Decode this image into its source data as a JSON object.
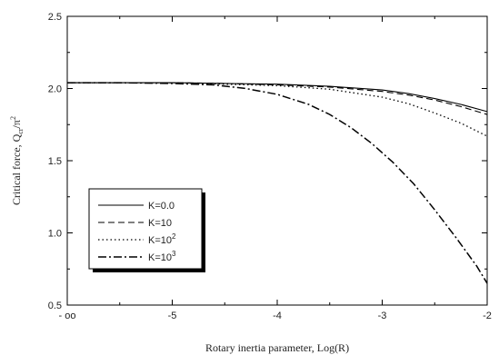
{
  "chart_data": {
    "type": "line",
    "title": "",
    "xlabel": "Rotary inertia parameter, Log(R)",
    "ylabel": "Critical force, Q",
    "ylabel_sub": "cr",
    "ylabel_tail": "/π",
    "ylabel_sup": "2",
    "x_tick_labels": [
      "- oo",
      "-5",
      "-4",
      "-3",
      "-2"
    ],
    "x_tick_values": [
      -6,
      -5,
      -4,
      -3,
      -2
    ],
    "xlim": [
      -6,
      -2
    ],
    "ylim": [
      0.5,
      2.5
    ],
    "y_ticks": [
      0.5,
      1.0,
      1.5,
      2.0,
      2.5
    ],
    "y_tick_labels": [
      "0.5",
      "1.0",
      "1.5",
      "2.0",
      "2.5"
    ],
    "grid": false,
    "legend_position": "bottom-left",
    "series": [
      {
        "name": "K=0.0",
        "name_base": "K=0.0",
        "name_sup": "",
        "dash": "solid",
        "x": [
          -6,
          -5.5,
          -5,
          -4.5,
          -4,
          -3.5,
          -3,
          -2.75,
          -2.5,
          -2.25,
          -2
        ],
        "y": [
          2.04,
          2.04,
          2.04,
          2.035,
          2.03,
          2.015,
          1.99,
          1.965,
          1.93,
          1.89,
          1.84
        ]
      },
      {
        "name": "K=10",
        "name_base": "K=10",
        "name_sup": "",
        "dash": "dash",
        "x": [
          -6,
          -5.5,
          -5,
          -4.5,
          -4,
          -3.5,
          -3,
          -2.75,
          -2.5,
          -2.25,
          -2
        ],
        "y": [
          2.04,
          2.04,
          2.04,
          2.035,
          2.025,
          2.01,
          1.98,
          1.955,
          1.92,
          1.875,
          1.82
        ]
      },
      {
        "name": "K=10^2",
        "name_base": "K=10",
        "name_sup": "2",
        "dash": "dot",
        "x": [
          -6,
          -5.5,
          -5,
          -4.5,
          -4,
          -3.5,
          -3,
          -2.75,
          -2.5,
          -2.25,
          -2
        ],
        "y": [
          2.04,
          2.04,
          2.04,
          2.03,
          2.02,
          1.995,
          1.94,
          1.895,
          1.83,
          1.76,
          1.67
        ]
      },
      {
        "name": "K=10^3",
        "name_base": "K=10",
        "name_sup": "3",
        "dash": "dashdot",
        "x": [
          -6,
          -5.5,
          -5,
          -4.6,
          -4.3,
          -4,
          -3.7,
          -3.5,
          -3.3,
          -3.1,
          -2.9,
          -2.7,
          -2.5,
          -2.3,
          -2.1,
          -2
        ],
        "y": [
          2.04,
          2.04,
          2.035,
          2.025,
          2.0,
          1.96,
          1.89,
          1.82,
          1.73,
          1.62,
          1.49,
          1.34,
          1.16,
          0.97,
          0.77,
          0.65
        ]
      }
    ]
  }
}
